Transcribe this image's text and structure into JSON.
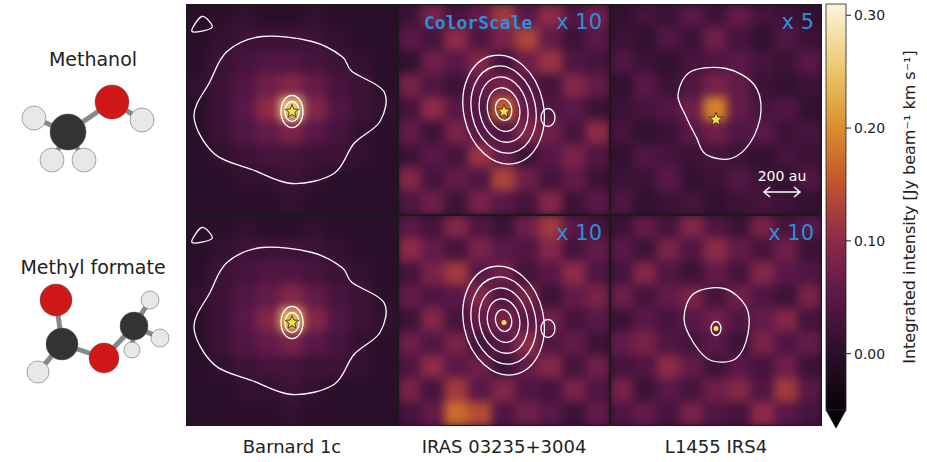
{
  "chart_data": {
    "type": "heatmap",
    "tick_labels": false,
    "rows": [
      "Methanol",
      "Methyl formate"
    ],
    "columns": [
      "Barnard 1c",
      "IRAS 03235+3004",
      "L1455 IRS4"
    ],
    "panels": [
      [
        {
          "cells": [
            [
              0.0,
              0.0,
              0.01,
              0.0,
              0.0,
              0.01,
              0.0,
              0.0,
              0.0
            ],
            [
              0.0,
              0.01,
              0.02,
              0.02,
              0.02,
              0.02,
              0.01,
              0.0,
              0.0
            ],
            [
              0.0,
              0.02,
              0.03,
              0.04,
              0.04,
              0.03,
              0.02,
              0.01,
              0.0
            ],
            [
              0.01,
              0.02,
              0.04,
              0.07,
              0.09,
              0.06,
              0.03,
              0.02,
              0.0
            ],
            [
              0.0,
              0.02,
              0.05,
              0.1,
              0.26,
              0.09,
              0.04,
              0.02,
              0.01
            ],
            [
              0.0,
              0.02,
              0.04,
              0.06,
              0.08,
              0.05,
              0.03,
              0.01,
              0.0
            ],
            [
              0.0,
              0.01,
              0.02,
              0.03,
              0.03,
              0.02,
              0.02,
              0.01,
              0.0
            ],
            [
              0.0,
              0.0,
              0.01,
              0.01,
              0.02,
              0.01,
              0.0,
              0.0,
              0.0
            ],
            [
              0.0,
              0.0,
              0.0,
              0.0,
              0.01,
              0.0,
              0.0,
              0.0,
              0.0
            ]
          ]
        },
        {
          "annotation": "ColorScale",
          "scale_label": "x 10",
          "cells": [
            [
              0.02,
              0.08,
              0.03,
              0.06,
              0.12,
              0.05,
              0.1,
              0.04,
              0.07
            ],
            [
              0.05,
              0.03,
              0.1,
              0.04,
              0.08,
              0.13,
              0.06,
              0.02,
              0.05
            ],
            [
              0.01,
              0.07,
              0.05,
              0.09,
              0.03,
              0.07,
              0.11,
              0.04,
              0.03
            ],
            [
              0.08,
              0.04,
              0.02,
              0.06,
              0.08,
              0.05,
              0.03,
              0.09,
              0.06
            ],
            [
              0.03,
              0.1,
              0.05,
              0.04,
              0.16,
              0.06,
              0.04,
              0.05,
              0.02
            ],
            [
              0.06,
              0.02,
              0.08,
              0.05,
              0.04,
              0.09,
              0.07,
              0.03,
              0.1
            ],
            [
              0.02,
              0.05,
              0.03,
              0.11,
              0.06,
              0.02,
              0.05,
              0.08,
              0.04
            ],
            [
              0.09,
              0.03,
              0.06,
              0.04,
              0.13,
              0.07,
              0.03,
              0.06,
              0.02
            ],
            [
              0.04,
              0.07,
              0.02,
              0.08,
              0.05,
              0.03,
              0.09,
              0.02,
              0.05
            ]
          ]
        },
        {
          "scale_label": "x 5",
          "scale_bar": "200 au",
          "cells": [
            [
              0.01,
              0.03,
              0.02,
              0.05,
              0.02,
              0.06,
              0.03,
              0.02,
              0.01
            ],
            [
              0.02,
              0.01,
              0.04,
              0.02,
              0.07,
              0.03,
              0.01,
              0.04,
              0.02
            ],
            [
              0.04,
              0.02,
              0.01,
              0.03,
              0.04,
              0.05,
              0.03,
              0.02,
              0.05
            ],
            [
              0.01,
              0.05,
              0.02,
              0.04,
              0.08,
              0.06,
              0.02,
              0.01,
              0.02
            ],
            [
              0.02,
              0.03,
              0.04,
              0.07,
              0.19,
              0.06,
              0.03,
              0.04,
              0.01
            ],
            [
              0.03,
              0.01,
              0.02,
              0.05,
              0.07,
              0.04,
              0.05,
              0.02,
              0.03
            ],
            [
              0.01,
              0.04,
              0.03,
              0.02,
              0.03,
              0.02,
              0.01,
              0.03,
              0.02
            ],
            [
              0.02,
              0.02,
              0.05,
              0.01,
              0.02,
              0.04,
              0.02,
              0.01,
              0.04
            ],
            [
              0.04,
              0.01,
              0.02,
              0.03,
              0.01,
              0.02,
              0.03,
              0.02,
              0.01
            ]
          ]
        }
      ],
      [
        {
          "cells": [
            [
              0.0,
              0.0,
              0.01,
              0.0,
              0.0,
              0.01,
              0.0,
              0.0,
              0.0
            ],
            [
              0.0,
              0.01,
              0.02,
              0.02,
              0.02,
              0.02,
              0.01,
              0.0,
              0.0
            ],
            [
              0.0,
              0.02,
              0.03,
              0.04,
              0.04,
              0.03,
              0.02,
              0.01,
              0.0
            ],
            [
              0.01,
              0.02,
              0.04,
              0.06,
              0.09,
              0.06,
              0.03,
              0.02,
              0.0
            ],
            [
              0.0,
              0.02,
              0.05,
              0.09,
              0.24,
              0.09,
              0.04,
              0.02,
              0.01
            ],
            [
              0.0,
              0.02,
              0.04,
              0.06,
              0.08,
              0.05,
              0.03,
              0.01,
              0.0
            ],
            [
              0.0,
              0.01,
              0.02,
              0.03,
              0.03,
              0.02,
              0.02,
              0.01,
              0.0
            ],
            [
              0.0,
              0.0,
              0.01,
              0.01,
              0.02,
              0.01,
              0.0,
              0.0,
              0.0
            ],
            [
              0.0,
              0.0,
              0.0,
              0.0,
              0.01,
              0.0,
              0.0,
              0.0,
              0.0
            ]
          ]
        },
        {
          "scale_label": "x 10",
          "cells": [
            [
              0.05,
              0.03,
              0.09,
              0.04,
              0.02,
              0.07,
              0.12,
              0.05,
              0.03
            ],
            [
              0.1,
              0.06,
              0.03,
              0.08,
              0.05,
              0.04,
              0.09,
              0.03,
              0.06
            ],
            [
              0.03,
              0.08,
              0.12,
              0.05,
              0.07,
              0.03,
              0.05,
              0.1,
              0.04
            ],
            [
              0.06,
              0.04,
              0.05,
              0.09,
              0.04,
              0.08,
              0.02,
              0.06,
              0.08
            ],
            [
              0.02,
              0.09,
              0.03,
              0.06,
              0.08,
              0.05,
              0.07,
              0.03,
              0.05
            ],
            [
              0.07,
              0.04,
              0.08,
              0.03,
              0.05,
              0.1,
              0.04,
              0.06,
              0.02
            ],
            [
              0.04,
              0.1,
              0.05,
              0.07,
              0.02,
              0.06,
              0.09,
              0.03,
              0.07
            ],
            [
              0.08,
              0.03,
              0.12,
              0.05,
              0.09,
              0.04,
              0.03,
              0.08,
              0.04
            ],
            [
              0.03,
              0.06,
              0.17,
              0.14,
              0.04,
              0.07,
              0.05,
              0.02,
              0.06
            ]
          ]
        },
        {
          "scale_label": "x 10",
          "cells": [
            [
              0.02,
              0.06,
              0.03,
              0.09,
              0.04,
              0.02,
              0.08,
              0.03,
              0.05
            ],
            [
              0.05,
              0.02,
              0.08,
              0.04,
              0.1,
              0.06,
              0.03,
              0.07,
              0.02
            ],
            [
              0.03,
              0.09,
              0.04,
              0.02,
              0.06,
              0.03,
              0.09,
              0.05,
              0.04
            ],
            [
              0.07,
              0.03,
              0.06,
              0.08,
              0.03,
              0.07,
              0.04,
              0.02,
              0.08
            ],
            [
              0.02,
              0.05,
              0.03,
              0.05,
              0.07,
              0.04,
              0.06,
              0.09,
              0.03
            ],
            [
              0.06,
              0.08,
              0.04,
              0.03,
              0.05,
              0.02,
              0.08,
              0.04,
              0.06
            ],
            [
              0.03,
              0.04,
              0.1,
              0.06,
              0.02,
              0.05,
              0.03,
              0.07,
              0.02
            ],
            [
              0.08,
              0.02,
              0.05,
              0.03,
              0.07,
              0.09,
              0.04,
              0.12,
              0.05
            ],
            [
              0.04,
              0.06,
              0.03,
              0.08,
              0.04,
              0.03,
              0.1,
              0.05,
              0.03
            ]
          ]
        }
      ]
    ],
    "colorbar": {
      "label": "Integrated intensity [Jy beam⁻¹ km s⁻¹]",
      "lim": [
        -0.05,
        0.31
      ],
      "ticks": [
        {
          "value": 0,
          "label": "0.00"
        },
        {
          "value": 0.1,
          "label": "0.10"
        },
        {
          "value": 0.2,
          "label": "0.20"
        },
        {
          "value": 0.3,
          "label": "0.30"
        }
      ]
    }
  }
}
